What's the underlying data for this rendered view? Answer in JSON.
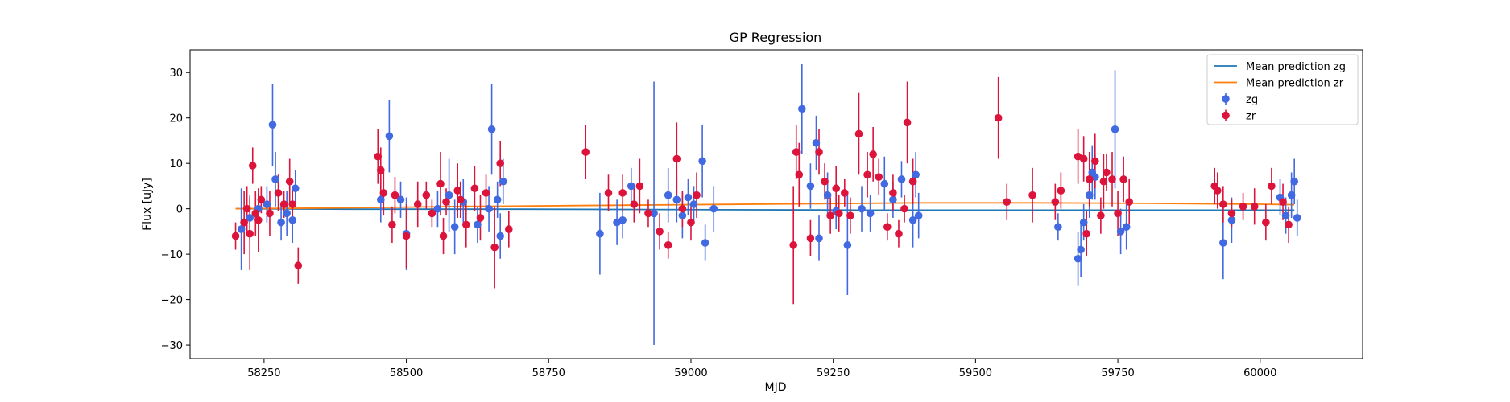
{
  "chart_data": {
    "type": "scatter",
    "title": "GP Regression",
    "xlabel": "MJD",
    "ylabel": "Flux [uJy]",
    "xlim": [
      58120,
      60180
    ],
    "ylim": [
      -33,
      35
    ],
    "xticks": [
      58250,
      58500,
      58750,
      59000,
      59250,
      59500,
      59750,
      60000
    ],
    "yticks": [
      -30,
      -20,
      -10,
      0,
      10,
      20,
      30
    ],
    "grid": false,
    "legend_position": "top-right",
    "mean_predictions": [
      {
        "name": "Mean prediction zg",
        "color": "#1f77b4",
        "x": [
          58200,
          58400,
          58700,
          59000,
          59300,
          59600,
          59900,
          60060
        ],
        "y": [
          0.0,
          -0.1,
          -0.1,
          -0.2,
          -0.3,
          -0.3,
          -0.3,
          -0.3
        ]
      },
      {
        "name": "Mean prediction zr",
        "color": "#ff7f0e",
        "x": [
          58200,
          58400,
          58600,
          58800,
          59000,
          59200,
          59400,
          59600,
          59800,
          60000,
          60060
        ],
        "y": [
          0.0,
          0.2,
          0.5,
          0.7,
          0.9,
          1.1,
          1.3,
          1.3,
          1.2,
          1.0,
          0.9
        ]
      }
    ],
    "series": [
      {
        "name": "zg",
        "color": "#4169e1",
        "x": [
          58210,
          58225,
          58240,
          58255,
          58265,
          58270,
          58280,
          58290,
          58300,
          58305,
          58455,
          58470,
          58490,
          58500,
          58555,
          58575,
          58585,
          58600,
          58625,
          58645,
          58650,
          58660,
          58665,
          58670,
          58840,
          58870,
          58880,
          58895,
          58935,
          58960,
          58975,
          58985,
          58995,
          59005,
          59020,
          59025,
          59040,
          59195,
          59210,
          59220,
          59225,
          59240,
          59255,
          59275,
          59300,
          59315,
          59340,
          59355,
          59370,
          59390,
          59395,
          59400,
          59645,
          59680,
          59685,
          59690,
          59700,
          59705,
          59710,
          59745,
          59755,
          59765,
          59935,
          59950,
          60035,
          60045,
          60055,
          60060,
          60065
        ],
        "y": [
          -4.5,
          -2,
          0,
          1,
          18.5,
          6.5,
          -3,
          -1,
          -2.5,
          4.5,
          2,
          16,
          2,
          -5.5,
          0,
          3,
          -4,
          1.5,
          -3.5,
          0,
          17.5,
          2,
          -6,
          6,
          -5.5,
          -3,
          -2.5,
          5,
          -1,
          3,
          2,
          -1.5,
          2.5,
          1,
          10.5,
          -7.5,
          0,
          22,
          5,
          14.5,
          -6.5,
          3,
          -0.5,
          -8,
          0,
          -1,
          5.5,
          2,
          6.5,
          -2.5,
          7.5,
          -1.5,
          -4,
          -11,
          -9,
          -3,
          3,
          8,
          7,
          17.5,
          -5,
          -4,
          -7.5,
          -2.5,
          2.5,
          -1.5,
          3,
          6,
          -2
        ],
        "err": [
          9,
          5,
          3,
          4,
          9,
          6,
          4,
          5,
          5,
          4,
          5,
          8,
          4,
          8,
          4,
          8,
          6,
          5,
          4,
          5,
          10,
          4,
          5,
          5,
          9,
          5,
          4,
          4,
          29,
          6,
          5,
          5,
          4,
          4,
          8,
          4,
          5,
          10,
          5,
          6,
          5,
          5,
          4,
          11,
          5,
          4,
          6,
          4,
          4,
          6,
          5,
          5,
          3,
          6,
          6,
          4,
          5,
          6,
          5,
          13,
          5,
          5,
          8,
          5,
          4,
          4,
          5,
          5,
          4
        ]
      },
      {
        "name": "zr",
        "color": "#dc143c",
        "x": [
          58200,
          58215,
          58220,
          58225,
          58230,
          58235,
          58240,
          58245,
          58260,
          58275,
          58285,
          58295,
          58300,
          58310,
          58450,
          58455,
          58460,
          58475,
          58480,
          58500,
          58520,
          58535,
          58545,
          58560,
          58565,
          58570,
          58590,
          58595,
          58605,
          58620,
          58630,
          58640,
          58655,
          58665,
          58680,
          58815,
          58855,
          58880,
          58900,
          58910,
          58925,
          58945,
          58960,
          58975,
          58985,
          59000,
          59010,
          59180,
          59185,
          59190,
          59210,
          59225,
          59235,
          59245,
          59255,
          59260,
          59270,
          59280,
          59295,
          59310,
          59320,
          59330,
          59345,
          59355,
          59365,
          59375,
          59380,
          59390,
          59540,
          59555,
          59600,
          59640,
          59650,
          59680,
          59690,
          59695,
          59700,
          59710,
          59720,
          59725,
          59730,
          59740,
          59750,
          59760,
          59770,
          59920,
          59925,
          59935,
          59950,
          59970,
          59990,
          60010,
          60020,
          60040,
          60050
        ],
        "y": [
          -6,
          -3,
          0,
          -5.5,
          9.5,
          -1,
          -2.5,
          2,
          -1,
          3.5,
          1,
          6,
          1,
          -12.5,
          11.5,
          8.5,
          3.5,
          -3.5,
          3,
          -6,
          1,
          3,
          -1,
          5.5,
          -6,
          1.5,
          4,
          2,
          -3.5,
          4.5,
          -2,
          3.5,
          -8.5,
          10,
          -4.5,
          12.5,
          3.5,
          3.5,
          1,
          5,
          -1,
          -5,
          -8,
          11,
          0,
          -3,
          3,
          -8,
          12.5,
          7.5,
          -6.5,
          12.5,
          6,
          -1.5,
          4.5,
          -1,
          3.5,
          -1.5,
          16.5,
          7.5,
          12,
          7,
          -4,
          3.5,
          -5.5,
          0,
          19,
          6,
          20,
          1.5,
          3,
          1.5,
          4,
          11.5,
          11,
          -5.5,
          6.5,
          10.5,
          -1.5,
          6,
          8,
          6.5,
          -1,
          6.5,
          1.5,
          5,
          4,
          1,
          -1,
          0.5,
          0.5,
          -3,
          5,
          1.5,
          -3.5
        ],
        "err": [
          3,
          7,
          5,
          8,
          4,
          5,
          7,
          3,
          5,
          4,
          3,
          5,
          4,
          4,
          6,
          5,
          5,
          4,
          4,
          7,
          5,
          3,
          3,
          7,
          4,
          3,
          6,
          4,
          5,
          5,
          5,
          4,
          9,
          5,
          4,
          6,
          4,
          4,
          4,
          6,
          3,
          4,
          3,
          8,
          4,
          4,
          5,
          13,
          6,
          7,
          4,
          5,
          4,
          4,
          5,
          4,
          3,
          4,
          9,
          5,
          6,
          4,
          3,
          4,
          3,
          3,
          9,
          5,
          9,
          4,
          6,
          4,
          4,
          6,
          5,
          5,
          6,
          6,
          4,
          6,
          4,
          6,
          5,
          5,
          5,
          4,
          4,
          4,
          3,
          3,
          4,
          4,
          4,
          4,
          4
        ]
      }
    ]
  }
}
